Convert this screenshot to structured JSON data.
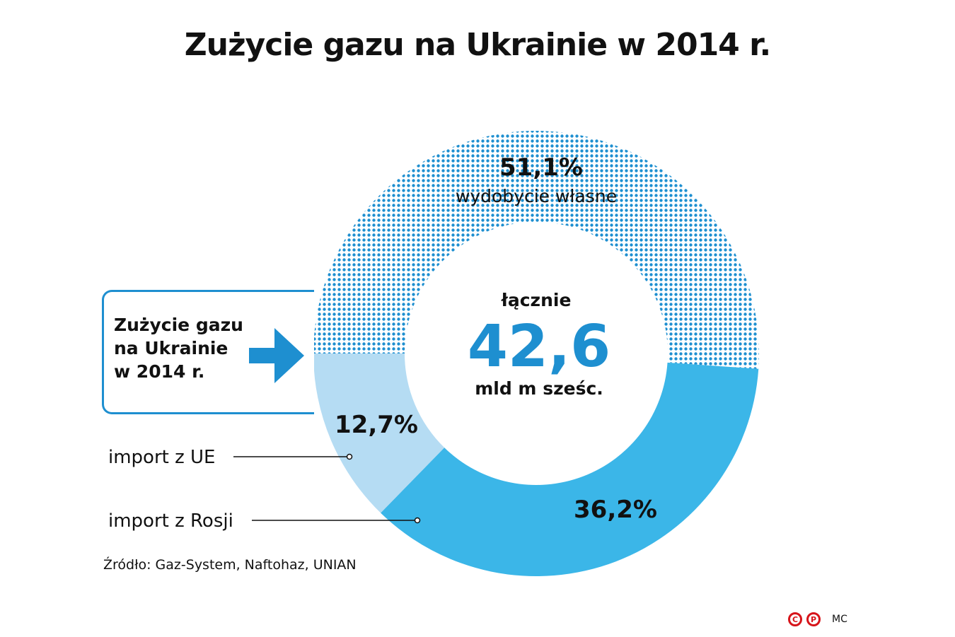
{
  "title": "Zużycie gazu  na Ukrainie  w 2014 r.",
  "callout": {
    "lines": [
      "Zużycie gazu",
      "na Ukrainie",
      "w 2014 r."
    ]
  },
  "chart_data": {
    "type": "pie",
    "variant": "donut",
    "total_label": "łącznie",
    "total_value": "42,6",
    "total_unit": "mld m sześc.",
    "slices": [
      {
        "label": "wydobycie własne",
        "value": 51.1,
        "value_label": "51,1%",
        "color": "#1e8fd0",
        "pattern": "dotted"
      },
      {
        "label": "import z Rosji",
        "value": 36.2,
        "value_label": "36,2%",
        "color": "#3bb6e8",
        "pattern": "solid"
      },
      {
        "label": "import z UE",
        "value": 12.7,
        "value_label": "12,7%",
        "color": "#b5dcf3",
        "pattern": "solid"
      }
    ]
  },
  "source": "Źródło: Gaz-System, Naftohaz, UNIAN",
  "credit": {
    "logo": [
      "C",
      "P"
    ],
    "author": "MC"
  },
  "colors": {
    "accent": "#1e8fd0",
    "number": "#1e8fd0",
    "logo": "#d7141a"
  }
}
